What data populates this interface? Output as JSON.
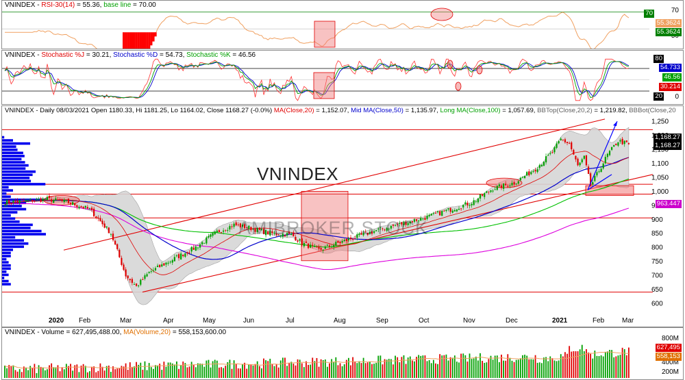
{
  "rsi_panel": {
    "title_symbol": "VNINDEX - ",
    "title_ind": "RSI-30(14)",
    "title_val": " = 55.36, ",
    "title_base": "base line",
    "title_base_val": " = 70.00",
    "axis": [
      "70",
      "50"
    ],
    "tags": [
      "70",
      "55.3624",
      "55.3624"
    ],
    "colors": {
      "line": "#f0a060",
      "pos": "#008000",
      "neg": "#ff0000"
    }
  },
  "stoch_panel": {
    "title_symbol": "VNINDEX - ",
    "title_j": "Stochastic %J",
    "title_j_val": " = 30.21, ",
    "title_d": "Stochastic %D",
    "title_d_val": " = 54.73, ",
    "title_k": "Stochastic %K",
    "title_k_val": " = 46.56",
    "axis": [
      "80",
      "20",
      "0"
    ],
    "tags": [
      "80",
      "54.733",
      "46.56",
      "30.214",
      "20"
    ]
  },
  "price_panel": {
    "title_main": "VNINDEX - Daily 08/03/2021 Open 1180.33, Hi 1181.25, Lo 1164.02, Close 1168.27 (-0.0%) ",
    "title_ma20": "MA(Close,20)",
    "title_ma20_val": " = 1,152.07, ",
    "title_ma50": "Mid MA(Close,50)",
    "title_ma50_val": " = 1,135.97, ",
    "title_ma100": "Long MA(Close,100)",
    "title_ma100_val": " = 1,057.69, ",
    "title_bbtop": "BBTop(Close,20,2)",
    "title_bbtop_val": " = 1,219.82, ",
    "title_bbbot": "BBBot(Close,20",
    "watermark": "VNINDEX",
    "watermark2": "AMIBROKER STOCK",
    "tags": [
      "1,168.27",
      "1,168.27",
      "963.447"
    ]
  },
  "volume_panel": {
    "title_main": "VNINDEX - Volume = 627,495,488.00, ",
    "title_ma": "MA(Volume,20)",
    "title_ma_val": " = 558,153,600.00",
    "axis": [
      "800M",
      "400M",
      "200M"
    ],
    "tags": [
      "627,495",
      "558,153"
    ]
  },
  "chart_data": {
    "type": "candlestick",
    "x_labels": [
      "2020",
      "Feb",
      "Mar",
      "Apr",
      "May",
      "Jun",
      "Jul",
      "Aug",
      "Sep",
      "Oct",
      "Nov",
      "Dec",
      "2021",
      "Feb",
      "Mar"
    ],
    "y_ticks": [
      600,
      650,
      700,
      750,
      800,
      850,
      900,
      950,
      1000,
      1050,
      1100,
      1150,
      1200,
      1250
    ],
    "y_range": [
      595,
      1265
    ],
    "close_trajectory": [
      [
        0,
        960
      ],
      [
        20,
        972
      ],
      [
        30,
        960
      ],
      [
        40,
        935
      ],
      [
        50,
        850
      ],
      [
        57,
        700
      ],
      [
        62,
        660
      ],
      [
        68,
        710
      ],
      [
        80,
        760
      ],
      [
        90,
        800
      ],
      [
        100,
        855
      ],
      [
        108,
        880
      ],
      [
        115,
        870
      ],
      [
        125,
        850
      ],
      [
        135,
        845
      ],
      [
        140,
        815
      ],
      [
        148,
        790
      ],
      [
        155,
        810
      ],
      [
        165,
        835
      ],
      [
        175,
        860
      ],
      [
        185,
        880
      ],
      [
        195,
        900
      ],
      [
        200,
        910
      ],
      [
        210,
        935
      ],
      [
        220,
        960
      ],
      [
        230,
        1010
      ],
      [
        240,
        1030
      ],
      [
        250,
        1080
      ],
      [
        258,
        1140
      ],
      [
        262,
        1185
      ],
      [
        266,
        1170
      ],
      [
        270,
        1090
      ],
      [
        273,
        1120
      ],
      [
        276,
        1020
      ],
      [
        279,
        1060
      ],
      [
        284,
        1130
      ],
      [
        289,
        1180
      ],
      [
        294,
        1168
      ]
    ],
    "series": [
      {
        "name": "MA(Close,20)",
        "color": "#e00000"
      },
      {
        "name": "Mid MA(Close,50)",
        "color": "#0000cc"
      },
      {
        "name": "Long MA(Close,100)",
        "color": "#00b000"
      },
      {
        "name": "BBTop(Close,20,2)",
        "color": "#bbbbbb"
      },
      {
        "name": "BBBot(Close,20",
        "color": "#bbbbbb"
      }
    ],
    "horizontal_lines": [
      1220,
      1025,
      990,
      905,
      640
    ],
    "last_close": 1168.27
  }
}
